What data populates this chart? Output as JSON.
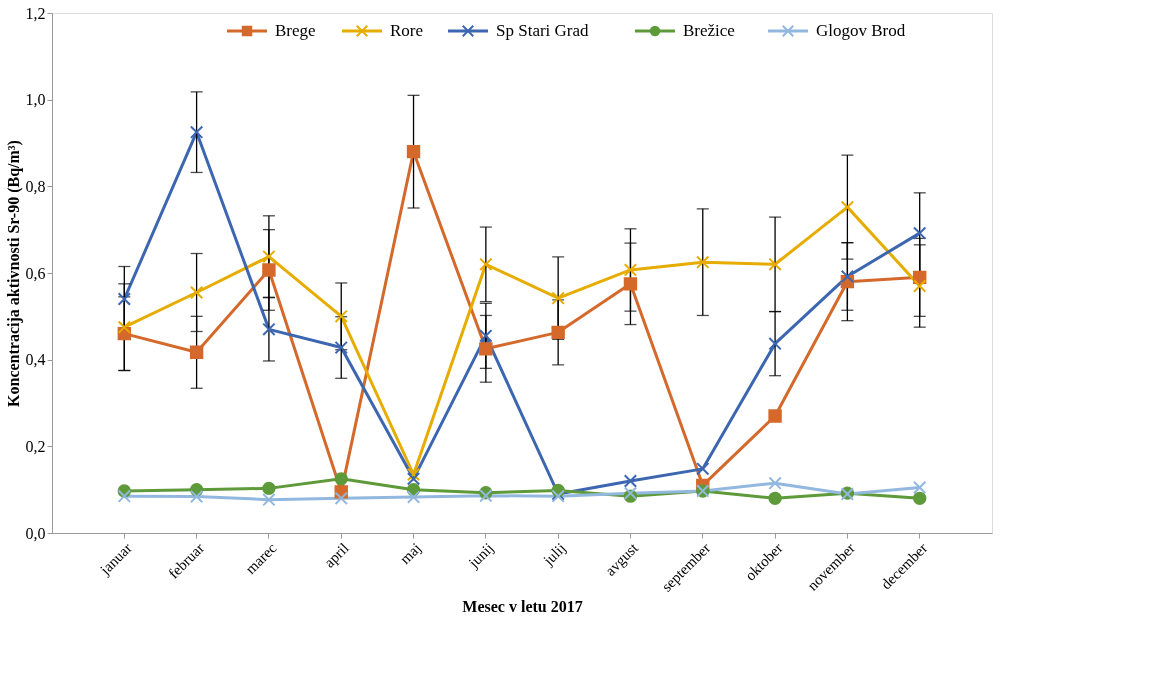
{
  "chart_data": {
    "type": "line",
    "xlabel": "Mesec v letu 2017",
    "ylabel": "Koncentracija aktivnosti Sr-90 (Bq/m³)",
    "categories": [
      "januar",
      "februar",
      "marec",
      "april",
      "maj",
      "junij",
      "julij",
      "avgust",
      "september",
      "oktober",
      "november",
      "december"
    ],
    "ylim": [
      0,
      1.2
    ],
    "yticks": [
      {
        "value": 0,
        "label": "0,0"
      },
      {
        "value": 0.2,
        "label": "0,2"
      },
      {
        "value": 0.4,
        "label": "0,4"
      },
      {
        "value": 0.6,
        "label": "0,6"
      },
      {
        "value": 0.8,
        "label": "0,8"
      },
      {
        "value": 1.0,
        "label": "1,0"
      },
      {
        "value": 1.2,
        "label": "1,2"
      }
    ],
    "grid": false,
    "legend": "top",
    "line_style": "solid",
    "series": [
      {
        "name": "Brege",
        "color": "#d4692b",
        "marker": "square",
        "values": [
          0.46,
          0.417,
          0.607,
          0.095,
          0.88,
          0.425,
          0.463,
          0.575,
          0.11,
          0.27,
          0.58,
          0.59
        ],
        "errors": [
          0.085,
          0.083,
          0.093,
          null,
          0.13,
          0.077,
          0.075,
          0.094,
          null,
          null,
          0.09,
          0.09
        ]
      },
      {
        "name": "Rore",
        "color": "#e6ac00",
        "marker": "cross",
        "values": [
          0.475,
          0.555,
          0.638,
          0.5,
          0.135,
          0.62,
          0.542,
          0.607,
          0.625,
          0.62,
          0.752,
          0.57
        ],
        "errors": [
          0.1,
          0.09,
          0.094,
          0.077,
          null,
          0.086,
          0.095,
          0.095,
          0.123,
          0.109,
          0.12,
          0.095
        ]
      },
      {
        "name": "Sp Stari Grad",
        "color": "#3d66b0",
        "marker": "cross",
        "values": [
          0.54,
          0.925,
          0.47,
          0.428,
          0.125,
          0.455,
          0.09,
          0.12,
          0.148,
          0.437,
          0.592,
          0.692
        ],
        "errors": [
          0.075,
          0.093,
          0.073,
          0.071,
          null,
          0.075,
          null,
          null,
          null,
          0.074,
          0.078,
          0.093
        ]
      },
      {
        "name": "Brežice",
        "color": "#5e9a3a",
        "marker": "circle",
        "values": [
          0.097,
          0.1,
          0.103,
          0.125,
          0.1,
          0.093,
          0.098,
          0.085,
          0.097,
          0.08,
          0.092,
          0.08
        ]
      },
      {
        "name": "Glogov Brod",
        "color": "#92b8e0",
        "marker": "cross",
        "values": [
          0.085,
          0.084,
          0.077,
          0.08,
          0.083,
          0.086,
          0.085,
          0.092,
          0.097,
          0.115,
          0.09,
          0.105
        ]
      }
    ]
  }
}
